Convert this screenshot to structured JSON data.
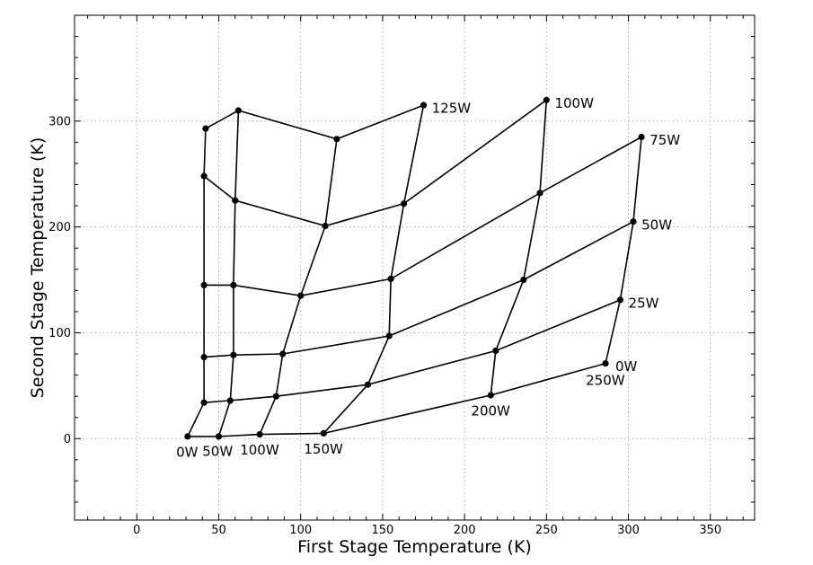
{
  "chart_data": {
    "type": "line",
    "xlabel": "First Stage Temperature (K)",
    "ylabel": "Second Stage Temperature (K)",
    "xlim": [
      -38,
      377
    ],
    "ylim": [
      -77,
      400
    ],
    "xticks": [
      0,
      50,
      100,
      150,
      200,
      250,
      300,
      350
    ],
    "yticks": [
      0,
      100,
      200,
      300
    ],
    "grid": true,
    "lines_first_stage_heat_constant": [
      {
        "label": "0W",
        "points": [
          [
            31,
            2
          ],
          [
            41,
            34
          ],
          [
            41,
            77
          ],
          [
            41,
            145
          ],
          [
            41,
            248
          ],
          [
            42,
            293
          ]
        ]
      },
      {
        "label": "50W",
        "points": [
          [
            50,
            2
          ],
          [
            57,
            36
          ],
          [
            59,
            79
          ],
          [
            59,
            145
          ],
          [
            60,
            225
          ],
          [
            62,
            310
          ]
        ]
      },
      {
        "label": "100W",
        "points": [
          [
            75,
            4
          ],
          [
            85,
            40
          ],
          [
            89,
            80
          ],
          [
            100,
            135
          ],
          [
            115,
            201
          ],
          [
            122,
            283
          ]
        ]
      },
      {
        "label": "150W",
        "points": [
          [
            114,
            5
          ],
          [
            141,
            51
          ],
          [
            154,
            97
          ],
          [
            155,
            151
          ],
          [
            163,
            222
          ],
          [
            175,
            315
          ]
        ]
      },
      {
        "label": "200W",
        "points": [
          [
            216,
            41
          ],
          [
            219,
            83
          ],
          [
            236,
            150
          ],
          [
            246,
            232
          ],
          [
            250,
            320
          ]
        ]
      },
      {
        "label": "250W",
        "points": [
          [
            286,
            71
          ],
          [
            295,
            131
          ],
          [
            303,
            205
          ],
          [
            308,
            285
          ]
        ]
      }
    ],
    "lines_second_stage_heat_constant": [
      {
        "label": "0W",
        "points": [
          [
            31,
            2
          ],
          [
            50,
            2
          ],
          [
            75,
            4
          ],
          [
            114,
            5
          ],
          [
            216,
            41
          ],
          [
            286,
            71
          ]
        ]
      },
      {
        "label": "25W",
        "points": [
          [
            41,
            34
          ],
          [
            57,
            36
          ],
          [
            85,
            40
          ],
          [
            141,
            51
          ],
          [
            219,
            83
          ],
          [
            295,
            131
          ]
        ]
      },
      {
        "label": "50W",
        "points": [
          [
            41,
            77
          ],
          [
            59,
            79
          ],
          [
            89,
            80
          ],
          [
            154,
            97
          ],
          [
            236,
            150
          ],
          [
            303,
            205
          ]
        ]
      },
      {
        "label": "75W",
        "points": [
          [
            41,
            145
          ],
          [
            59,
            145
          ],
          [
            100,
            135
          ],
          [
            155,
            151
          ],
          [
            246,
            232
          ],
          [
            308,
            285
          ]
        ]
      },
      {
        "label": "100W",
        "points": [
          [
            41,
            248
          ],
          [
            60,
            225
          ],
          [
            115,
            201
          ],
          [
            163,
            222
          ],
          [
            250,
            320
          ]
        ]
      },
      {
        "label": "125W",
        "points": [
          [
            42,
            293
          ],
          [
            62,
            310
          ],
          [
            122,
            283
          ],
          [
            175,
            315
          ]
        ]
      }
    ],
    "annotations": [
      {
        "text": "0W",
        "x": 24,
        "y": -13,
        "anchor": "start"
      },
      {
        "text": "50W",
        "x": 40,
        "y": -12,
        "anchor": "start"
      },
      {
        "text": "100W",
        "x": 63,
        "y": -11,
        "anchor": "start"
      },
      {
        "text": "150W",
        "x": 102,
        "y": -10,
        "anchor": "start"
      },
      {
        "text": "200W",
        "x": 204,
        "y": 26,
        "anchor": "start"
      },
      {
        "text": "250W",
        "x": 274,
        "y": 55,
        "anchor": "start"
      },
      {
        "text": "0W",
        "x": 292,
        "y": 68,
        "anchor": "start"
      },
      {
        "text": "25W",
        "x": 300,
        "y": 128,
        "anchor": "start"
      },
      {
        "text": "50W",
        "x": 308,
        "y": 202,
        "anchor": "start"
      },
      {
        "text": "75W",
        "x": 313,
        "y": 282,
        "anchor": "start"
      },
      {
        "text": "100W",
        "x": 255,
        "y": 317,
        "anchor": "start"
      },
      {
        "text": "125W",
        "x": 180,
        "y": 312,
        "anchor": "start"
      }
    ]
  }
}
